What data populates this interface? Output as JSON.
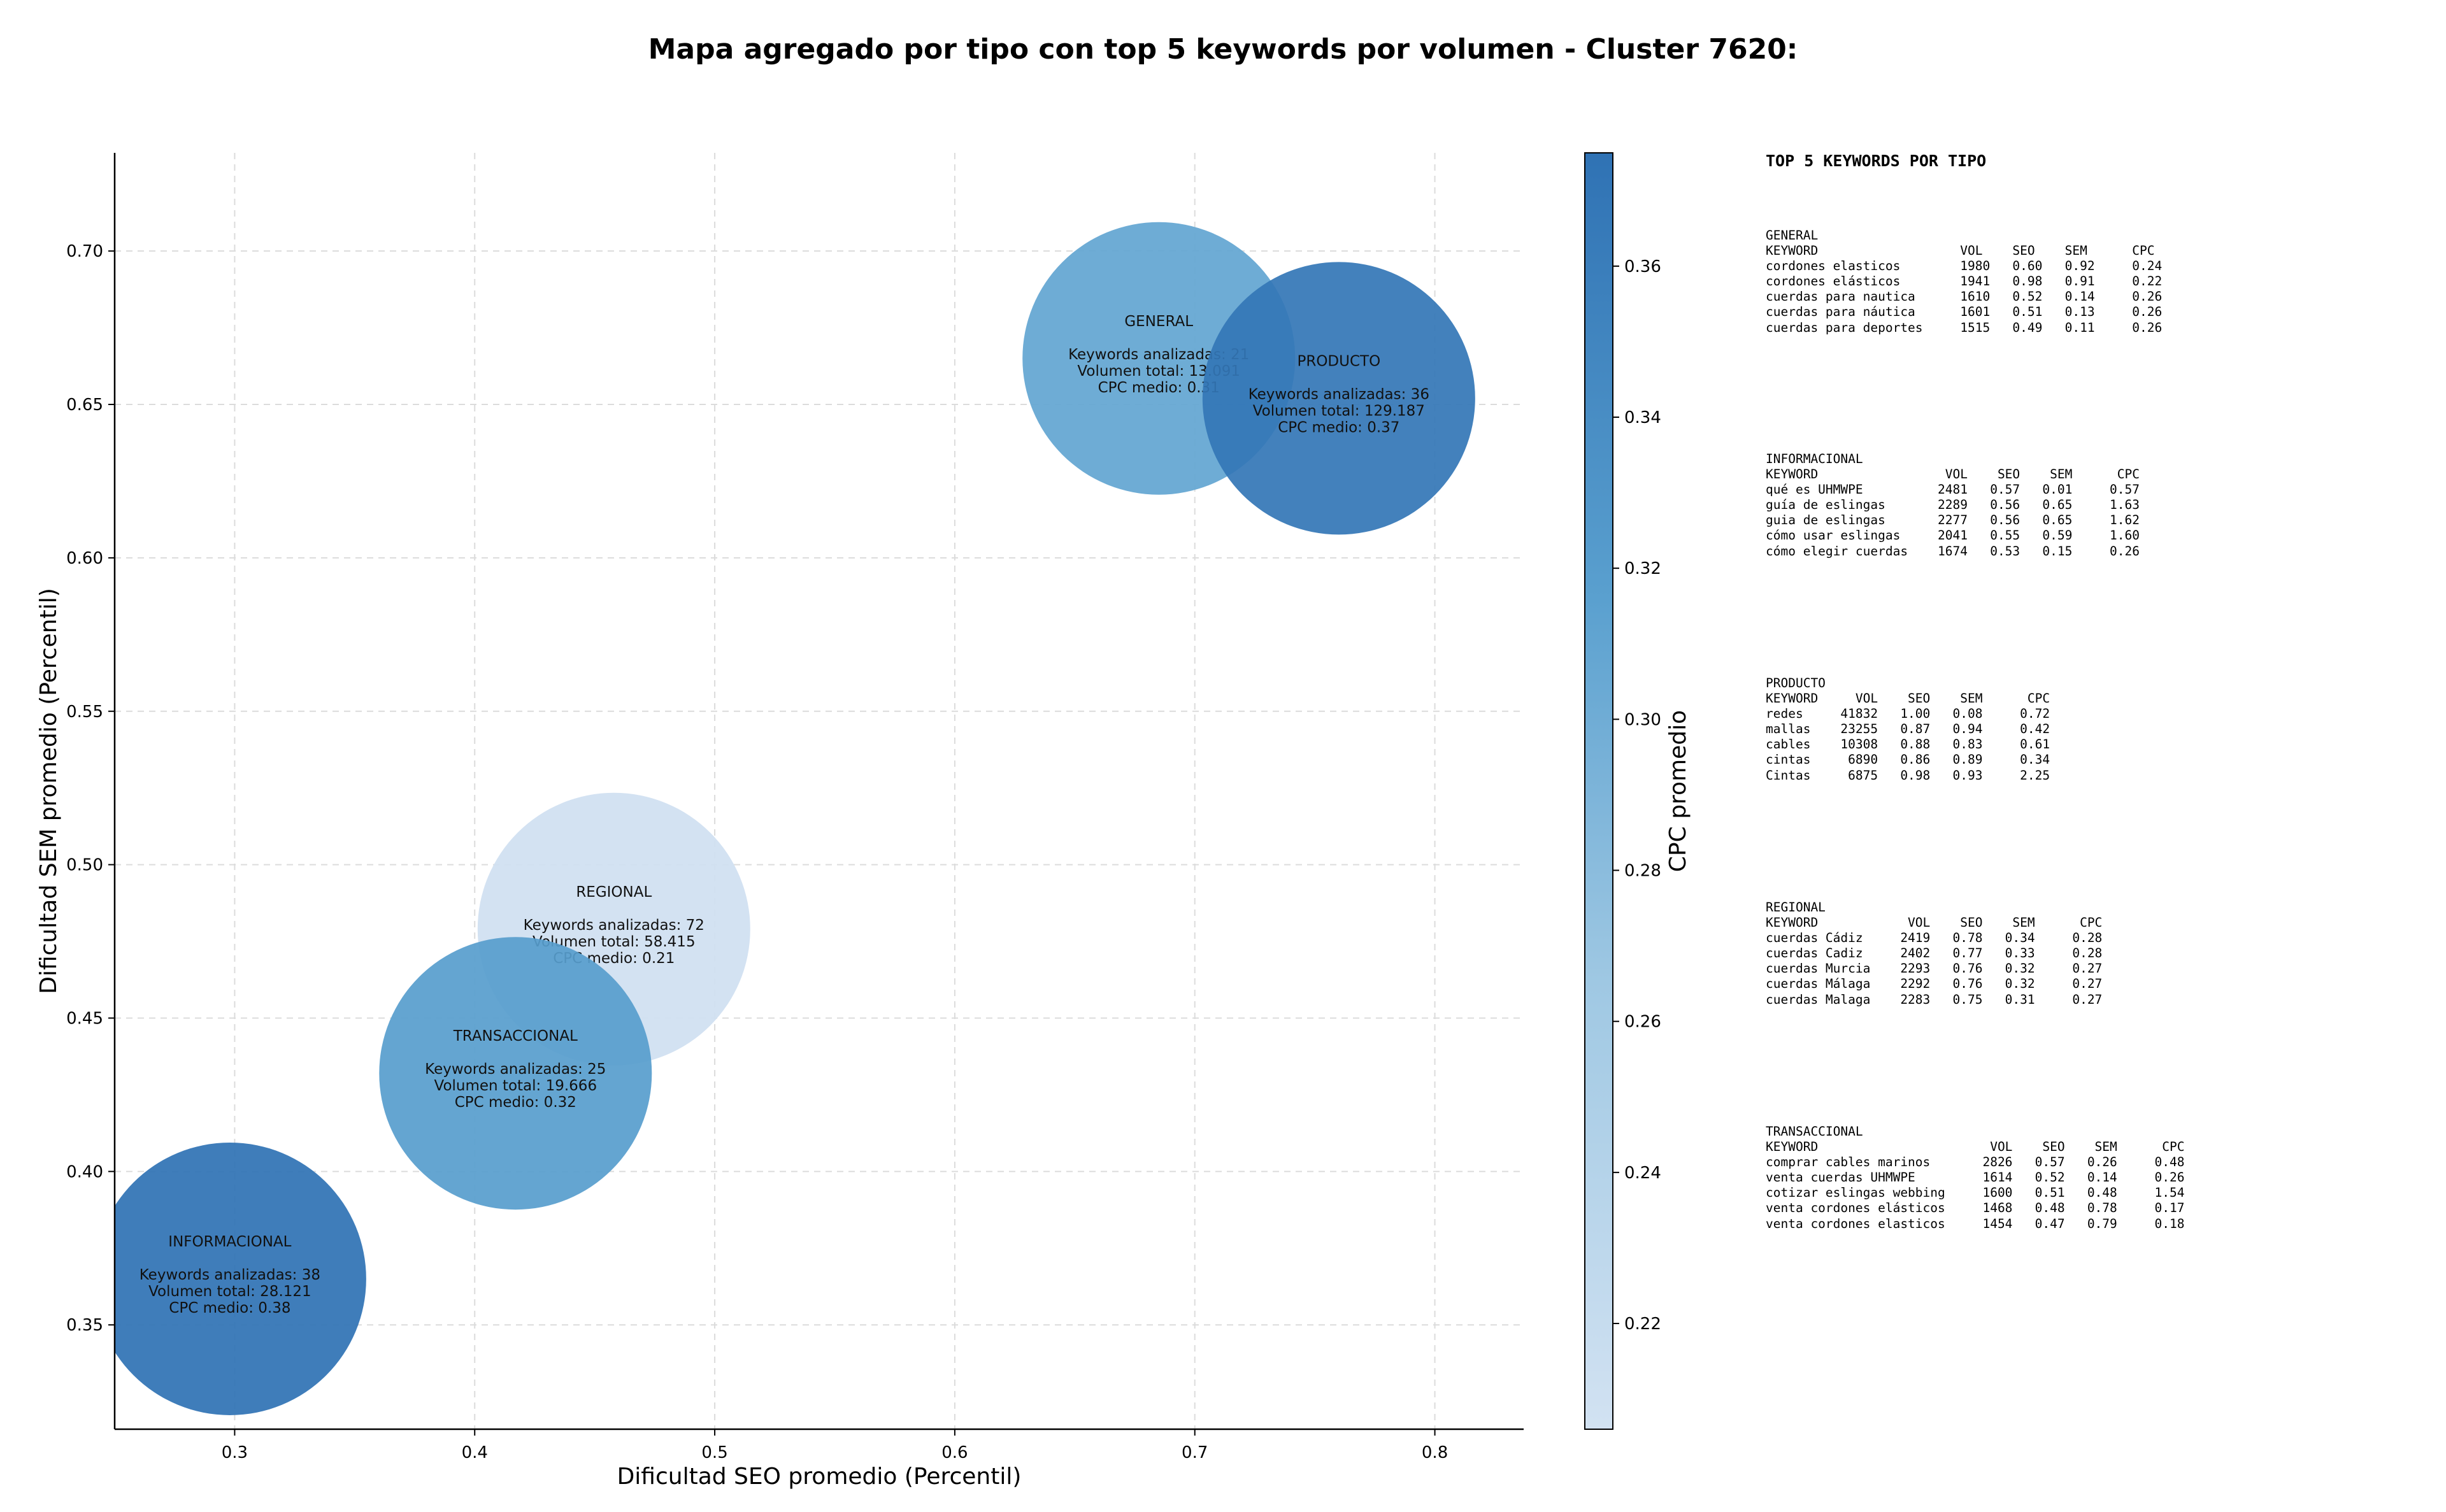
{
  "chart_data": {
    "type": "scatter",
    "title": "Mapa agregado por tipo con top 5 keywords por volumen - Cluster 7620:",
    "xlabel": "Dificultad SEO promedio (Percentil)",
    "ylabel": "Dificultad SEM promedio (Percentil)",
    "colorbar_label": "CPC promedio",
    "xlim": [
      0.25,
      0.837
    ],
    "ylim": [
      0.316,
      0.732
    ],
    "xticks": [
      0.3,
      0.4,
      0.5,
      0.6,
      0.7,
      0.8
    ],
    "xtick_labels": [
      "0.3",
      "0.4",
      "0.5",
      "0.6",
      "0.7",
      "0.8"
    ],
    "yticks": [
      0.35,
      0.4,
      0.45,
      0.5,
      0.55,
      0.6,
      0.65,
      0.7
    ],
    "ytick_labels": [
      "0.35",
      "0.40",
      "0.45",
      "0.50",
      "0.55",
      "0.60",
      "0.65",
      "0.70"
    ],
    "colorbar_range": [
      0.206,
      0.375
    ],
    "colorbar_ticks": [
      0.22,
      0.24,
      0.26,
      0.28,
      0.3,
      0.32,
      0.34,
      0.36
    ],
    "colorbar_tick_labels": [
      "0.22",
      "0.24",
      "0.26",
      "0.28",
      "0.30",
      "0.32",
      "0.34",
      "0.36"
    ],
    "grid": true,
    "points": [
      {
        "name": "GENERAL",
        "x": 0.685,
        "y": 0.665,
        "cpc": 0.31,
        "info": [
          "Keywords analizadas: 21",
          "Volumen total: 13.091",
          "CPC medio: 0.31"
        ]
      },
      {
        "name": "PRODUCTO",
        "x": 0.76,
        "y": 0.652,
        "cpc": 0.37,
        "info": [
          "Keywords analizadas: 36",
          "Volumen total: 129.187",
          "CPC medio: 0.37"
        ]
      },
      {
        "name": "REGIONAL",
        "x": 0.458,
        "y": 0.479,
        "cpc": 0.21,
        "info": [
          "Keywords analizadas: 72",
          "Volumen total: 58.415",
          "CPC medio: 0.21"
        ]
      },
      {
        "name": "TRANSACCIONAL",
        "x": 0.417,
        "y": 0.432,
        "cpc": 0.32,
        "info": [
          "Keywords analizadas: 25",
          "Volumen total: 19.666",
          "CPC medio: 0.32"
        ]
      },
      {
        "name": "INFORMACIONAL",
        "x": 0.298,
        "y": 0.365,
        "cpc": 0.38,
        "info": [
          "Keywords analizadas: 38",
          "Volumen total: 28.121",
          "CPC medio: 0.38"
        ]
      }
    ]
  },
  "keyword_tables": {
    "heading": "TOP 5 KEYWORDS POR TIPO",
    "blocks": [
      {
        "text": "GENERAL\nKEYWORD                   VOL    SEO    SEM      CPC\ncordones elasticos        1980   0.60   0.92     0.24\ncordones elásticos        1941   0.98   0.91     0.22\ncuerdas para nautica      1610   0.52   0.14     0.26\ncuerdas para náutica      1601   0.51   0.13     0.26\ncuerdas para deportes     1515   0.49   0.11     0.26"
      },
      {
        "text": "INFORMACIONAL\nKEYWORD                 VOL    SEO    SEM      CPC\nqué es UHMWPE          2481   0.57   0.01     0.57\nguía de eslingas       2289   0.56   0.65     1.63\nguia de eslingas       2277   0.56   0.65     1.62\ncómo usar eslingas     2041   0.55   0.59     1.60\ncómo elegir cuerdas    1674   0.53   0.15     0.26"
      },
      {
        "text": "PRODUCTO\nKEYWORD     VOL    SEO    SEM      CPC\nredes     41832   1.00   0.08     0.72\nmallas    23255   0.87   0.94     0.42\ncables    10308   0.88   0.83     0.61\ncintas     6890   0.86   0.89     0.34\nCintas     6875   0.98   0.93     2.25"
      },
      {
        "text": "REGIONAL\nKEYWORD            VOL    SEO    SEM      CPC\ncuerdas Cádiz     2419   0.78   0.34     0.28\ncuerdas Cadiz     2402   0.77   0.33     0.28\ncuerdas Murcia    2293   0.76   0.32     0.27\ncuerdas Málaga    2292   0.76   0.32     0.27\ncuerdas Malaga    2283   0.75   0.31     0.27"
      },
      {
        "text": "TRANSACCIONAL\nKEYWORD                       VOL    SEO    SEM      CPC\ncomprar cables marinos       2826   0.57   0.26     0.48\nventa cuerdas UHMWPE         1614   0.52   0.14     0.26\ncotizar eslingas webbing     1600   0.51   0.48     1.54\nventa cordones elásticos     1468   0.48   0.78     0.17\nventa cordones elasticos     1454   0.47   0.79     0.18"
      }
    ]
  }
}
